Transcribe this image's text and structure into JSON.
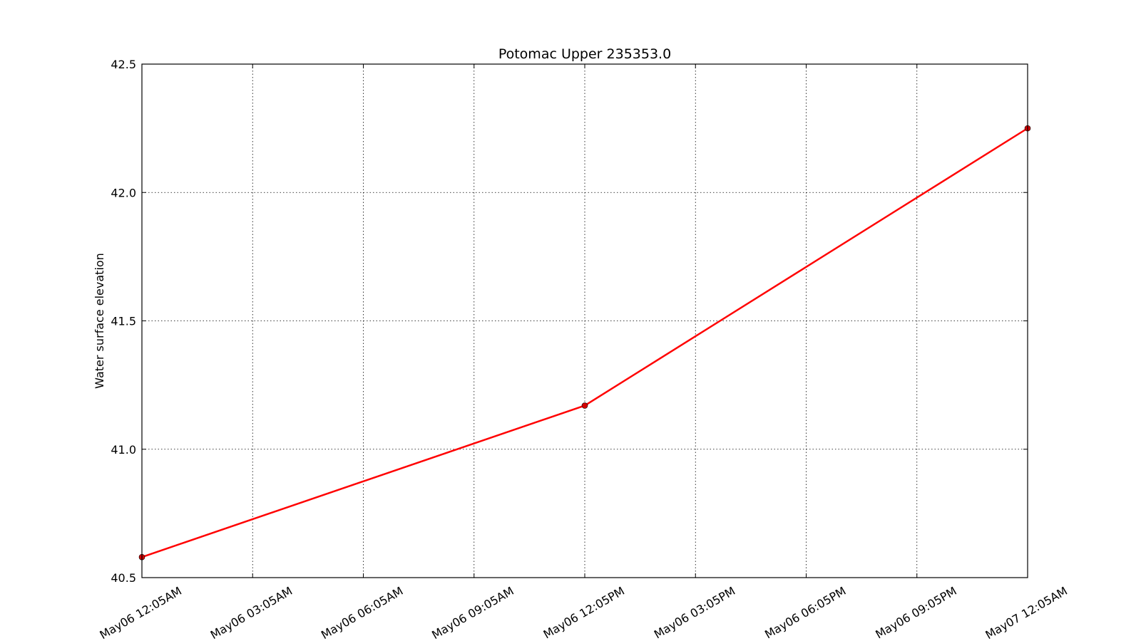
{
  "chart_data": {
    "type": "line",
    "title": "Potomac Upper 235353.0",
    "xlabel": "",
    "ylabel": "Water surface elevation",
    "x_tick_labels": [
      "May06 12:05AM",
      "May06 03:05AM",
      "May06 06:05AM",
      "May06 09:05AM",
      "May06 12:05PM",
      "May06 03:05PM",
      "May06 06:05PM",
      "May06 09:05PM",
      "May07 12:05AM"
    ],
    "y_tick_labels": [
      "40.5",
      "41.0",
      "41.5",
      "42.0",
      "42.5"
    ],
    "ylim": [
      40.5,
      42.5
    ],
    "grid": true,
    "series": [
      {
        "x": [
          "May06 12:05AM",
          "May06 12:05PM",
          "May07 12:05AM"
        ],
        "values": [
          40.58,
          41.17,
          42.25
        ],
        "color": "#ff0000",
        "marker_color": "#d40000"
      }
    ]
  }
}
